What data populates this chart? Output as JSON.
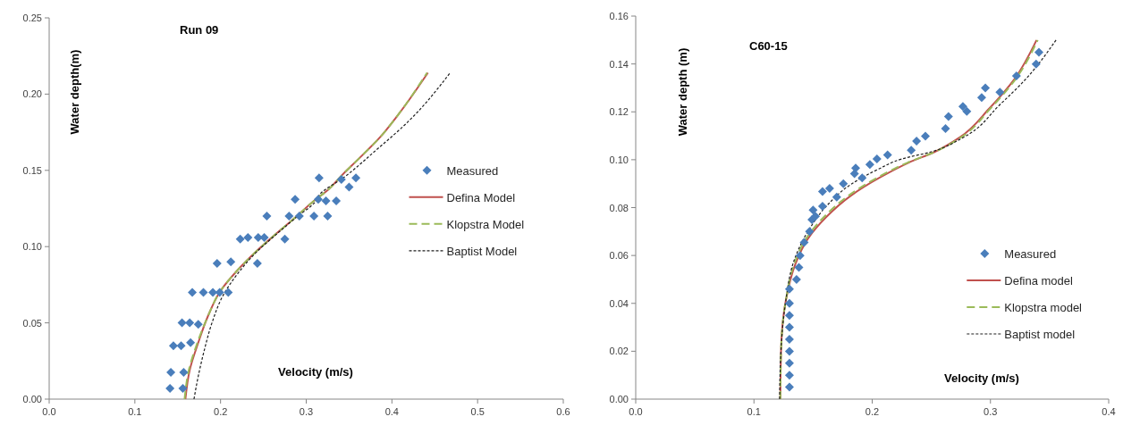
{
  "chart_data": [
    {
      "type": "scatter",
      "title": "Run 09",
      "xlabel": "Velocity (m/s)",
      "ylabel": "Water depth(m)",
      "xlim": [
        0,
        0.6
      ],
      "ylim": [
        0,
        0.25
      ],
      "xticks": [
        {
          "value": 0,
          "label": "0.0"
        },
        0.1,
        0.2,
        0.3,
        0.4,
        0.5,
        0.6
      ],
      "yticks": [
        {
          "value": 0,
          "label": "0.00"
        },
        0.05,
        {
          "value": 0.1,
          "label": "0.10"
        },
        0.15,
        {
          "value": 0.2,
          "label": "0.20"
        },
        0.25
      ],
      "grid": false,
      "legend": "right",
      "series": [
        {
          "name": "Measured",
          "marker": "diamond",
          "color": "#4a7ebb",
          "x": [
            0.141,
            0.156,
            0.142,
            0.157,
            0.145,
            0.154,
            0.165,
            0.155,
            0.164,
            0.174,
            0.167,
            0.18,
            0.191,
            0.199,
            0.209,
            0.196,
            0.212,
            0.243,
            0.223,
            0.232,
            0.244,
            0.251,
            0.275,
            0.254,
            0.28,
            0.292,
            0.309,
            0.325,
            0.287,
            0.314,
            0.323,
            0.335,
            0.315,
            0.341,
            0.35,
            0.358
          ],
          "values": [
            0.007,
            0.007,
            0.0175,
            0.0175,
            0.035,
            0.035,
            0.037,
            0.05,
            0.05,
            0.049,
            0.07,
            0.07,
            0.07,
            0.07,
            0.07,
            0.089,
            0.09,
            0.089,
            0.105,
            0.106,
            0.106,
            0.106,
            0.105,
            0.12,
            0.12,
            0.12,
            0.12,
            0.12,
            0.131,
            0.131,
            0.13,
            0.13,
            0.145,
            0.144,
            0.139,
            0.145
          ]
        },
        {
          "name": "Defina Model",
          "type": "line",
          "line_style": "solid",
          "color": "#c0504d",
          "x": [
            0.159,
            0.164,
            0.174,
            0.185,
            0.2,
            0.219,
            0.242,
            0.264,
            0.287,
            0.309,
            0.325,
            0.342,
            0.362,
            0.385,
            0.408,
            0.442
          ],
          "values": [
            0,
            0.019,
            0.037,
            0.054,
            0.071,
            0.084,
            0.097,
            0.108,
            0.119,
            0.13,
            0.137,
            0.147,
            0.158,
            0.171,
            0.187,
            0.214
          ]
        },
        {
          "name": "Klopstra Model",
          "type": "line",
          "line_style": "dashed",
          "color": "#9bbb59",
          "x": [
            0.158,
            0.163,
            0.173,
            0.185,
            0.2,
            0.219,
            0.242,
            0.264,
            0.287,
            0.309,
            0.325,
            0.342,
            0.362,
            0.385,
            0.408,
            0.441
          ],
          "values": [
            0,
            0.019,
            0.037,
            0.054,
            0.071,
            0.084,
            0.097,
            0.108,
            0.119,
            0.13,
            0.137,
            0.147,
            0.158,
            0.171,
            0.187,
            0.214
          ]
        },
        {
          "name": "Baptist Model",
          "type": "line",
          "line_style": "dotted",
          "color": "#1f1f1f",
          "x": [
            0.169,
            0.174,
            0.181,
            0.19,
            0.203,
            0.221,
            0.243,
            0.265,
            0.288,
            0.31,
            0.317,
            0.343,
            0.381,
            0.419,
            0.468
          ],
          "values": [
            0,
            0.015,
            0.032,
            0.05,
            0.068,
            0.083,
            0.097,
            0.108,
            0.119,
            0.129,
            0.135,
            0.145,
            0.163,
            0.182,
            0.214
          ]
        }
      ]
    },
    {
      "type": "scatter",
      "title": "C60-15",
      "xlabel": "Velocity (m/s)",
      "ylabel": "Water depth (m)",
      "xlim": [
        0,
        0.4
      ],
      "ylim": [
        0,
        0.16
      ],
      "xticks": [
        {
          "value": 0,
          "label": "0.0"
        },
        0.1,
        0.2,
        0.3,
        0.4
      ],
      "yticks": [
        {
          "value": 0,
          "label": "0.00"
        },
        0.02,
        0.04,
        0.06,
        0.08,
        {
          "value": 0.1,
          "label": "0.10"
        },
        0.12,
        0.14,
        0.16
      ],
      "grid": false,
      "legend": "bottom right",
      "series": [
        {
          "name": "Measured",
          "marker": "diamond",
          "color": "#4a7ebb",
          "x": [
            0.13,
            0.13,
            0.13,
            0.13,
            0.13,
            0.13,
            0.13,
            0.13,
            0.13,
            0.136,
            0.138,
            0.139,
            0.1425,
            0.147,
            0.149,
            0.15,
            0.152,
            0.158,
            0.158,
            0.164,
            0.17,
            0.1756,
            0.185,
            0.186,
            0.1915,
            0.198,
            0.204,
            0.213,
            0.233,
            0.2375,
            0.245,
            0.262,
            0.2645,
            0.2767,
            0.28,
            0.2926,
            0.2957,
            0.308,
            0.322,
            0.3386,
            0.341
          ],
          "values": [
            0.005,
            0.01,
            0.015,
            0.02,
            0.025,
            0.03,
            0.035,
            0.04,
            0.046,
            0.05,
            0.055,
            0.06,
            0.0655,
            0.07,
            0.075,
            0.079,
            0.0764,
            0.0806,
            0.0867,
            0.088,
            0.0844,
            0.09,
            0.0942,
            0.0965,
            0.0924,
            0.098,
            0.1003,
            0.102,
            0.104,
            0.1078,
            0.1098,
            0.113,
            0.118,
            0.1222,
            0.1202,
            0.126,
            0.13,
            0.1282,
            0.135,
            0.14,
            0.1449
          ]
        },
        {
          "name": "Defina model",
          "type": "line",
          "line_style": "solid",
          "color": "#c0504d",
          "x": [
            0.1223,
            0.123,
            0.127,
            0.135,
            0.1456,
            0.161,
            0.182,
            0.207,
            0.231,
            0.253,
            0.274,
            0.299,
            0.32,
            0.339
          ],
          "values": [
            0,
            0.0216,
            0.0413,
            0.0564,
            0.067,
            0.076,
            0.085,
            0.0927,
            0.0988,
            0.1033,
            0.1093,
            0.1214,
            0.1335,
            0.15
          ]
        },
        {
          "name": "Klopstra model",
          "type": "line",
          "line_style": "dashed",
          "color": "#9bbb59",
          "x": [
            0.1223,
            0.123,
            0.127,
            0.134,
            0.144,
            0.159,
            0.18,
            0.205,
            0.23,
            0.253,
            0.275,
            0.3,
            0.321,
            0.34
          ],
          "values": [
            0,
            0.0216,
            0.0413,
            0.0564,
            0.067,
            0.076,
            0.085,
            0.0927,
            0.0988,
            0.1033,
            0.1093,
            0.1214,
            0.1335,
            0.15
          ]
        },
        {
          "name": "Baptist model",
          "type": "line",
          "line_style": "dotted",
          "color": "#1f1f1f",
          "x": [
            0.1217,
            0.123,
            0.127,
            0.134,
            0.1456,
            0.162,
            0.182,
            0.205,
            0.225,
            0.25,
            0.277,
            0.308,
            0.3295,
            0.3555
          ],
          "values": [
            0,
            0.0216,
            0.0413,
            0.058,
            0.07,
            0.081,
            0.0897,
            0.096,
            0.1003,
            0.1033,
            0.1093,
            0.123,
            0.1335,
            0.15
          ]
        }
      ]
    }
  ]
}
